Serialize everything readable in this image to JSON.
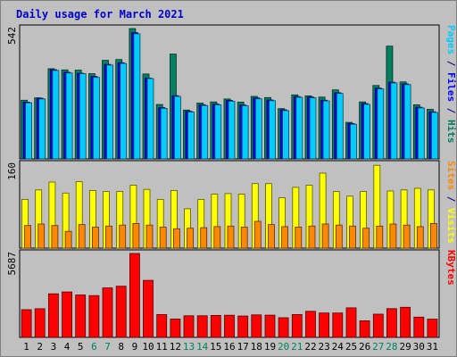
{
  "chart_data": {
    "type": "bar",
    "title": "Daily usage for March 2021",
    "categories": [
      "1",
      "2",
      "3",
      "4",
      "5",
      "6",
      "7",
      "8",
      "9",
      "10",
      "11",
      "12",
      "13",
      "14",
      "15",
      "16",
      "17",
      "18",
      "19",
      "20",
      "21",
      "22",
      "23",
      "24",
      "25",
      "26",
      "27",
      "28",
      "29",
      "30",
      "31"
    ],
    "weekend_days": [
      "6",
      "7",
      "13",
      "14",
      "20",
      "21",
      "27",
      "28"
    ],
    "panels": [
      {
        "id": "hits-files-pages",
        "ymax_label": "542",
        "ylim": [
          0,
          542
        ],
        "axis_label_parts": [
          {
            "text": "Pages",
            "color": "#00ccff"
          },
          {
            "text": " / ",
            "color": "#000080"
          },
          {
            "text": "Files",
            "color": "#0000ff"
          },
          {
            "text": " / ",
            "color": "#000080"
          },
          {
            "text": "Hits",
            "color": "#008060"
          }
        ],
        "series": [
          {
            "name": "Hits",
            "color": "#008060",
            "values": [
              244,
              254,
              375,
              370,
              369,
              354,
              410,
              413,
              542,
              353,
              226,
              436,
              203,
              232,
              237,
              249,
              236,
              260,
              255,
              209,
              266,
              262,
              257,
              287,
              152,
              237,
              305,
              469,
              320,
              225,
              206
            ]
          },
          {
            "name": "Files",
            "color": "#0000ff",
            "values": [
              236,
              252,
              371,
              360,
              356,
              343,
              393,
              400,
              525,
              336,
              213,
              263,
              198,
              225,
              228,
              243,
              224,
              253,
              245,
              204,
              259,
              257,
              244,
              275,
              147,
              230,
              294,
              319,
              312,
              215,
              196
            ]
          },
          {
            "name": "Pages",
            "color": "#00ccff",
            "values": [
              233,
              249,
              368,
              357,
              354,
              339,
              390,
              397,
              520,
              334,
              210,
              260,
              195,
              222,
              225,
              240,
              221,
              250,
              242,
              201,
              256,
              254,
              241,
              272,
              144,
              227,
              291,
              316,
              309,
              212,
              193
            ]
          }
        ]
      },
      {
        "id": "visits-sites",
        "ymax_label": "160",
        "ylim": [
          0,
          160
        ],
        "axis_label_parts": [
          {
            "text": "Sites",
            "color": "#ff8800"
          },
          {
            "text": " / ",
            "color": "#000080"
          },
          {
            "text": "Visits",
            "color": "#ffff00"
          }
        ],
        "series": [
          {
            "name": "Visits",
            "color": "#ffff00",
            "values": [
              93,
              111,
              126,
              105,
              127,
              110,
              108,
              108,
              120,
              112,
              93,
              110,
              75,
              93,
              103,
              104,
              103,
              123,
              123,
              96,
              116,
              120,
              143,
              108,
              99,
              108,
              158,
              109,
              111,
              114,
              111
            ]
          },
          {
            "name": "Sites",
            "color": "#ff8800",
            "values": [
              43,
              46,
              43,
              32,
              45,
              40,
              42,
              44,
              47,
              44,
              40,
              37,
              38,
              39,
              41,
              42,
              40,
              51,
              45,
              41,
              40,
              42,
              46,
              44,
              42,
              38,
              42,
              46,
              44,
              41,
              47
            ]
          }
        ]
      },
      {
        "id": "kbytes",
        "ymax_label": "5687",
        "ylim": [
          0,
          5687
        ],
        "axis_label_parts": [
          {
            "text": "KBytes",
            "color": "#ff0000"
          }
        ],
        "series": [
          {
            "name": "KBytes",
            "color": "#ff0000",
            "values": [
              1877,
              1940,
              2951,
              3081,
              2876,
              2832,
              3350,
              3465,
              5687,
              3868,
              1550,
              1241,
              1466,
              1466,
              1489,
              1502,
              1448,
              1527,
              1509,
              1332,
              1547,
              1764,
              1650,
              1651,
              2002,
              1123,
              1575,
              1950,
              2038,
              1374,
              1234
            ]
          }
        ]
      }
    ]
  }
}
